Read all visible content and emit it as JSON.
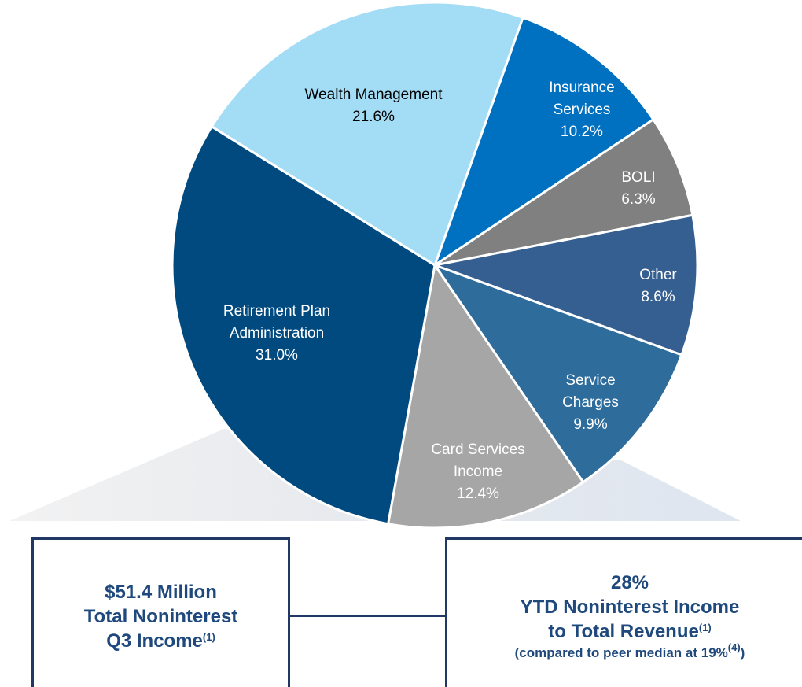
{
  "chart_data": {
    "type": "pie",
    "categories": [
      "Insurance\nServices",
      "BOLI",
      "Other",
      "Service\nCharges",
      "Card Services\nIncome",
      "Retirement Plan\nAdministration",
      "Wealth Management"
    ],
    "values": [
      10.2,
      6.3,
      8.6,
      9.9,
      12.4,
      31.0,
      21.6
    ],
    "value_labels": [
      "10.2%",
      "6.3%",
      "8.6%",
      "9.9%",
      "12.4%",
      "31.0%",
      "21.6%"
    ],
    "colors": [
      "#0070c0",
      "#808080",
      "#365f91",
      "#2e6c9c",
      "#a6a6a6",
      "#004a80",
      "#a3dcf5"
    ],
    "label_colors": [
      "#ffffff",
      "#ffffff",
      "#ffffff",
      "#ffffff",
      "#ffffff",
      "#ffffff",
      "#000000"
    ]
  },
  "callouts": [
    {
      "lines": [
        "$51.4 Million",
        "Total Noninterest",
        "Q3 Income"
      ],
      "note": "(1)"
    },
    {
      "lines": [
        "28%",
        "YTD Noninterest Income",
        "to Total Revenue"
      ],
      "note": "(1)",
      "sub": "(compared to peer median at 19%",
      "sub_note": "(4)",
      "sub_end": ")"
    }
  ]
}
